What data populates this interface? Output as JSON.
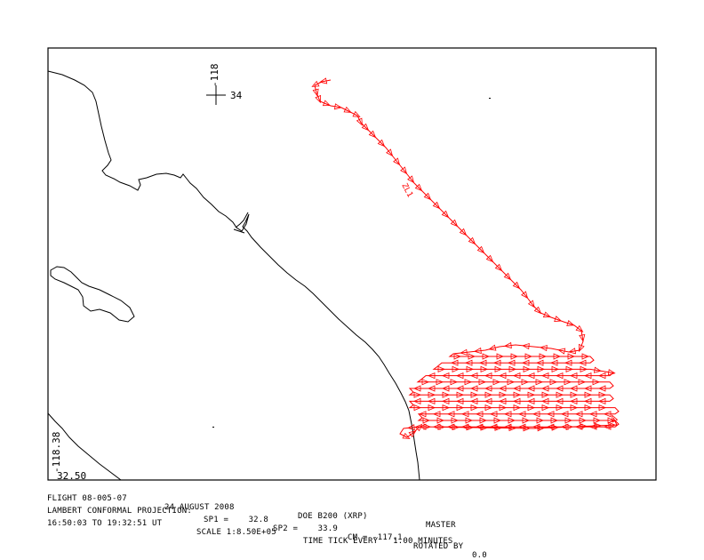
{
  "map": {
    "grid_lon_label": "-118",
    "grid_lat_label": "34",
    "corner_lon_label": "-118.38",
    "corner_lat_label": "32.50",
    "flight_tag": "ZL1",
    "track_color": "#ff0000",
    "coast_color": "#000000"
  },
  "footer": {
    "flight": "FLIGHT 08-005-07",
    "date": "24 AUGUST 2008",
    "aircraft": "DOE B200 (XRP)",
    "master": "MASTER",
    "projection": "LAMBERT CONFORMAL PROJECTION:",
    "sp1": "SP1 =    32.8",
    "sp2": "SP2 =    33.9",
    "cm": "CM = -117.1",
    "rotated": "ROTATED BY",
    "rotation": "0.0",
    "time_range": "16:50:03 TO 19:32:51 UT",
    "scale": "SCALE 1:8.50E+05",
    "time_tick": "TIME TICK EVERY   1.00 MINUTES"
  }
}
